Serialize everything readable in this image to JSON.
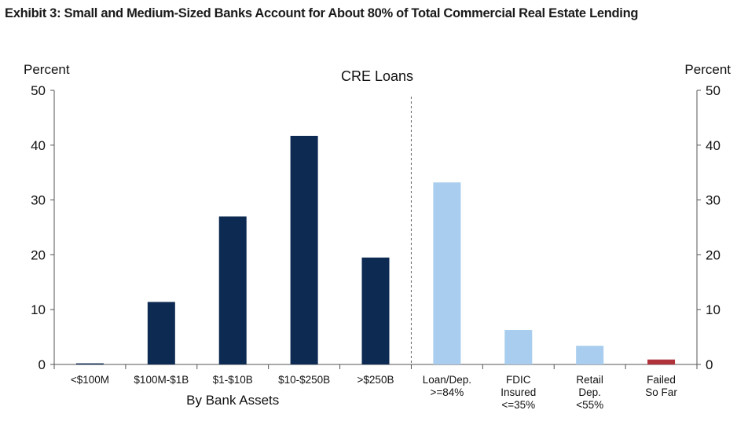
{
  "exhibit_title": "Exhibit 3: Small and Medium-Sized Banks Account for About 80% of Total Commercial Real Estate Lending",
  "chart_data": {
    "type": "bar",
    "title": "CRE Loans",
    "ylabel_left": "Percent",
    "ylabel_right": "Percent",
    "ylim": [
      0,
      50
    ],
    "yticks": [
      "0",
      "10",
      "20",
      "30",
      "40",
      "50"
    ],
    "grid": false,
    "groups": [
      {
        "xlabel": "By Bank Assets",
        "color": "#0c2a52",
        "categories": [
          [
            "<$100M"
          ],
          [
            "$100M-$1B"
          ],
          [
            "$1-$10B"
          ],
          [
            "$10-$250B"
          ],
          [
            ">$250B"
          ]
        ],
        "values": [
          0.2,
          11.4,
          27.0,
          41.7,
          19.5
        ]
      },
      {
        "xlabel": "",
        "color": "#a8cdee",
        "categories": [
          [
            "Loan/Dep.",
            ">=84%"
          ],
          [
            "FDIC",
            "Insured",
            "<=35%"
          ],
          [
            "Retail",
            "Dep.",
            "<55%"
          ]
        ],
        "values": [
          33.2,
          6.3,
          3.4
        ]
      },
      {
        "xlabel": "",
        "color": "#b0323a",
        "categories": [
          [
            "Failed",
            "So Far"
          ]
        ],
        "values": [
          0.9
        ]
      }
    ]
  }
}
